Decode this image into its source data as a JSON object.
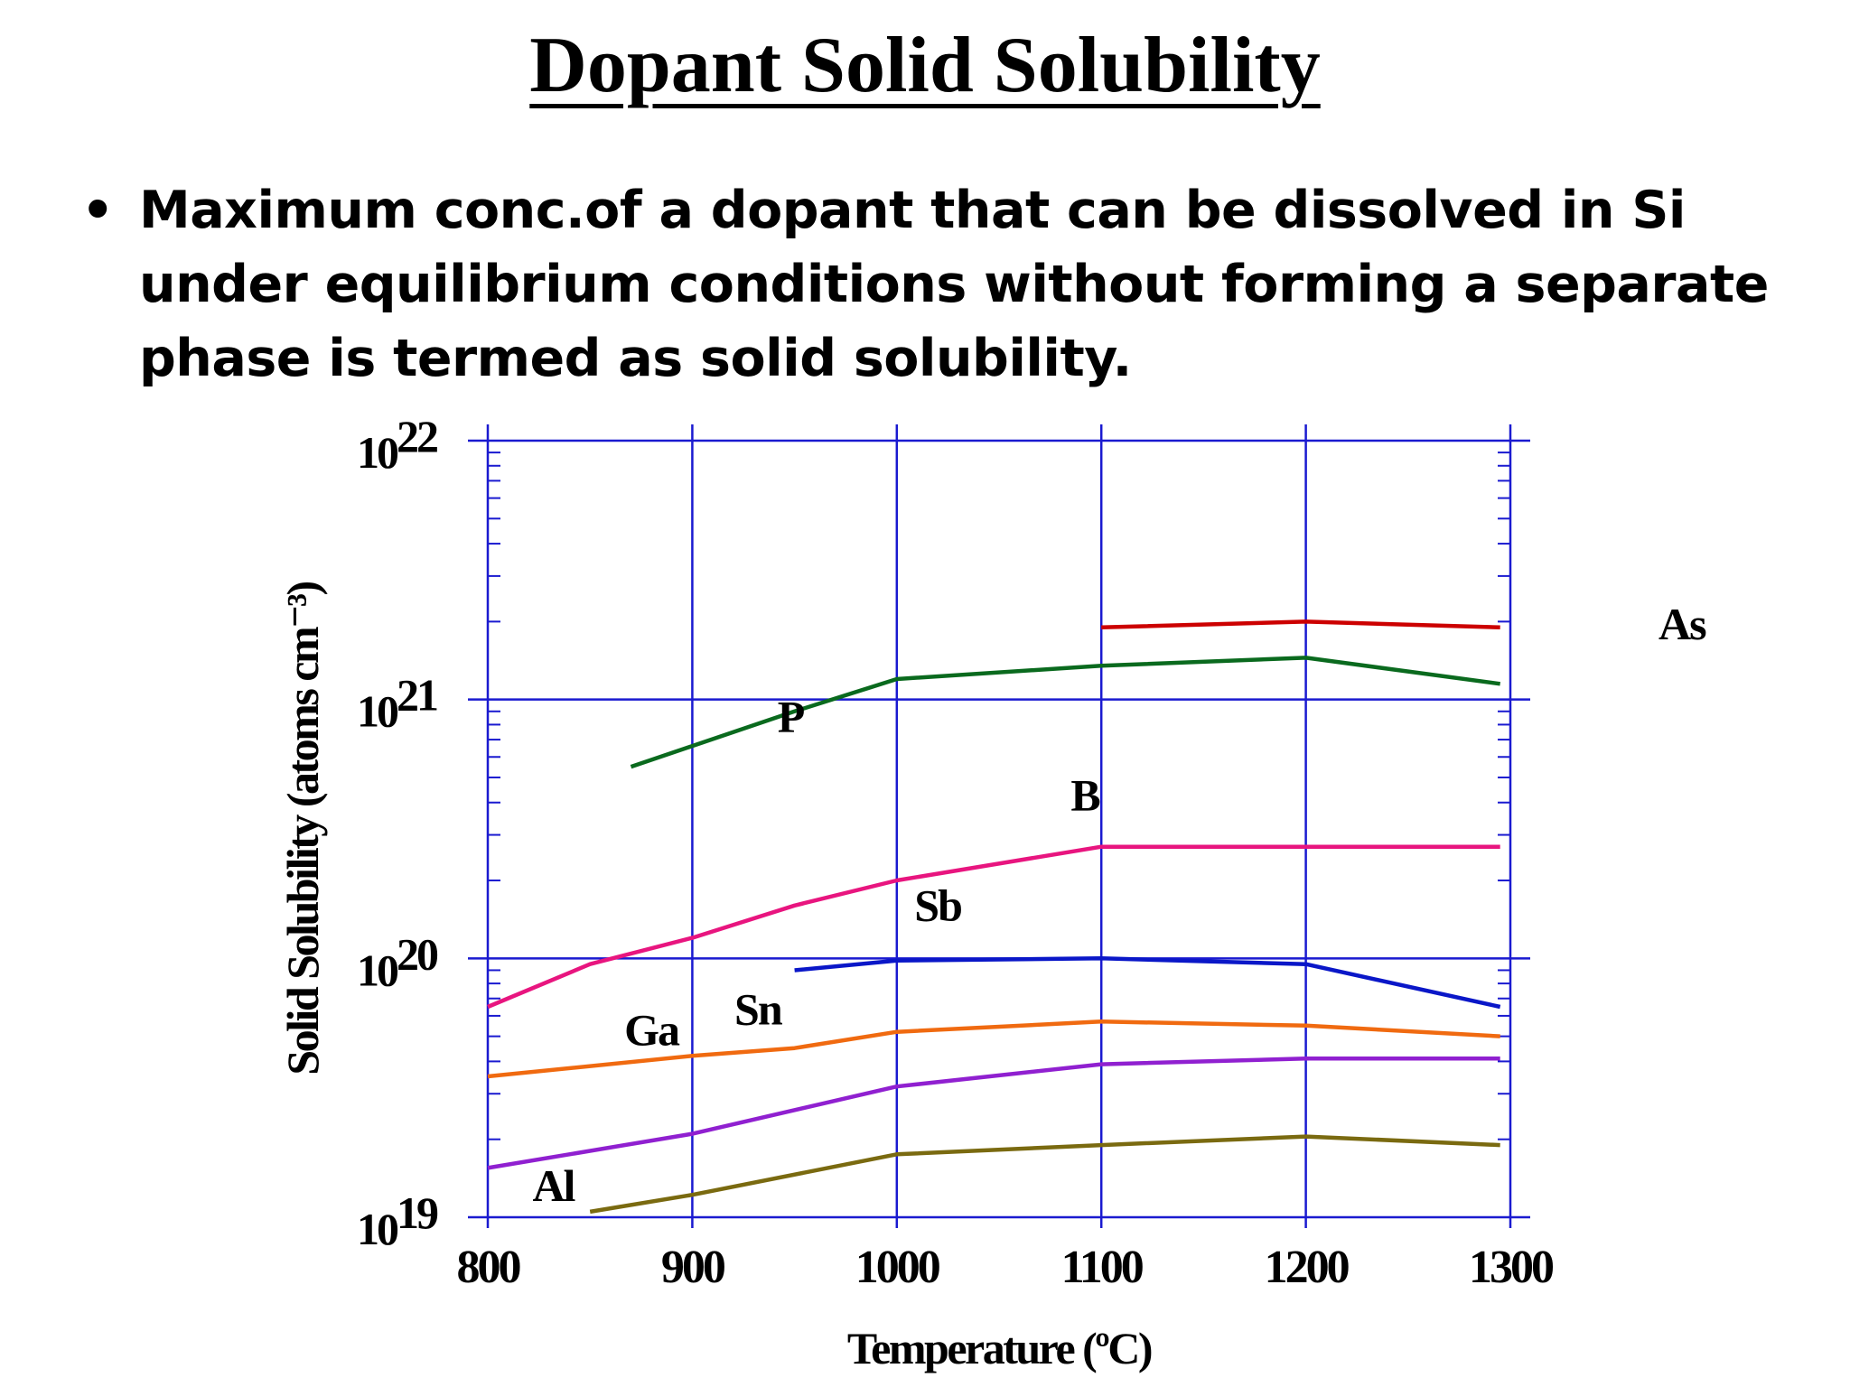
{
  "slide": {
    "title": "Dopant Solid Solubility",
    "bullet": "Maximum conc.of a dopant that can be dissolved in Si under equilibrium conditions without forming a separate phase is termed as solid solubility."
  },
  "chart_data": {
    "type": "line",
    "xlabel": "Temperature (ºC)",
    "ylabel": "Solid Solubility (atoms cm⁻³)",
    "xlim": [
      800,
      1300
    ],
    "ylim": [
      1e+19,
      1e+22
    ],
    "y_scale": "log",
    "x_ticks": [
      "800",
      "900",
      "1000",
      "1100",
      "1200",
      "1300"
    ],
    "y_ticks": [
      {
        "base": "10",
        "exp": "22"
      },
      {
        "base": "10",
        "exp": "21"
      },
      {
        "base": "10",
        "exp": "20"
      },
      {
        "base": "10",
        "exp": "19"
      }
    ],
    "grid": true,
    "series": [
      {
        "name": "As",
        "color": "#cc0000",
        "points": [
          [
            1100,
            1.9e+21
          ],
          [
            1200,
            2e+21
          ],
          [
            1295,
            1.9e+21
          ]
        ]
      },
      {
        "name": "P",
        "color": "#0a6a1e",
        "points": [
          [
            870,
            5.5e+20
          ],
          [
            950,
            9e+20
          ],
          [
            1000,
            1.2e+21
          ],
          [
            1100,
            1.35e+21
          ],
          [
            1200,
            1.45e+21
          ],
          [
            1295,
            1.15e+21
          ]
        ]
      },
      {
        "name": "B",
        "color": "#e8157f",
        "points": [
          [
            800,
            6.5e+19
          ],
          [
            850,
            9.5e+19
          ],
          [
            900,
            1.2e+20
          ],
          [
            950,
            1.6e+20
          ],
          [
            1000,
            2e+20
          ],
          [
            1100,
            2.7e+20
          ],
          [
            1200,
            2.7e+20
          ],
          [
            1295,
            2.7e+20
          ]
        ]
      },
      {
        "name": "Sb",
        "color": "#0a17c8",
        "points": [
          [
            950,
            9e+19
          ],
          [
            1000,
            9.8e+19
          ],
          [
            1100,
            1e+20
          ],
          [
            1200,
            9.5e+19
          ],
          [
            1295,
            6.5e+19
          ]
        ]
      },
      {
        "name": "Sn",
        "color": "#f06a10",
        "points": [
          [
            800,
            3.5e+19
          ],
          [
            900,
            4.2e+19
          ],
          [
            950,
            4.5e+19
          ],
          [
            1000,
            5.2e+19
          ],
          [
            1100,
            5.7e+19
          ],
          [
            1200,
            5.5e+19
          ],
          [
            1295,
            5e+19
          ]
        ]
      },
      {
        "name": "Ga",
        "color": "#9020d0",
        "points": [
          [
            800,
            1.55e+19
          ],
          [
            900,
            2.1e+19
          ],
          [
            1000,
            3.2e+19
          ],
          [
            1100,
            3.9e+19
          ],
          [
            1200,
            4.1e+19
          ],
          [
            1295,
            4.1e+19
          ]
        ]
      },
      {
        "name": "Al",
        "color": "#7a6a10",
        "points": [
          [
            850,
            1.05e+19
          ],
          [
            900,
            1.22e+19
          ],
          [
            1000,
            1.75e+19
          ],
          [
            1100,
            1.9e+19
          ],
          [
            1200,
            2.05e+19
          ],
          [
            1295,
            1.9e+19
          ]
        ]
      }
    ]
  }
}
